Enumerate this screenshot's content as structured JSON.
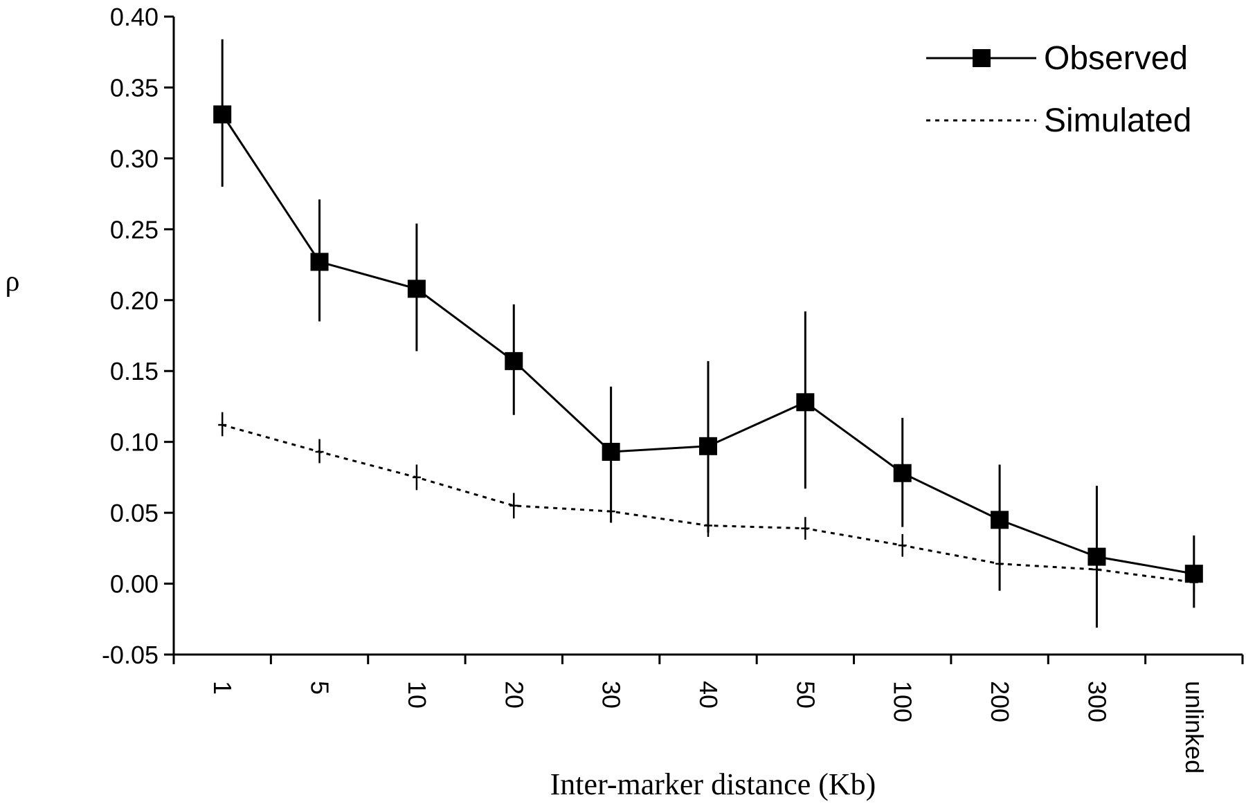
{
  "chart_data": {
    "type": "line",
    "xlabel": "Inter-marker distance (Kb)",
    "ylabel": "ρ",
    "ylim": [
      -0.05,
      0.4
    ],
    "y_ticks": [
      "0.40",
      "0.35",
      "0.30",
      "0.25",
      "0.20",
      "0.15",
      "0.10",
      "0.05",
      "0.00",
      "-0.05"
    ],
    "categories": [
      "1",
      "5",
      "10",
      "20",
      "30",
      "40",
      "50",
      "100",
      "200",
      "300",
      "unlinked"
    ],
    "legend_position": "top-right",
    "grid": false,
    "series": [
      {
        "name": "Observed",
        "style": "solid-square-markers",
        "values": [
          0.331,
          0.227,
          0.208,
          0.157,
          0.093,
          0.097,
          0.128,
          0.078,
          0.045,
          0.019,
          0.007
        ],
        "err_low": [
          0.28,
          0.185,
          0.164,
          0.119,
          0.043,
          0.036,
          0.067,
          0.04,
          -0.005,
          -0.031,
          -0.017
        ],
        "err_high": [
          0.384,
          0.271,
          0.254,
          0.197,
          0.139,
          0.157,
          0.192,
          0.117,
          0.084,
          0.069,
          0.034
        ]
      },
      {
        "name": "Simulated",
        "style": "dotted",
        "values": [
          0.112,
          0.093,
          0.075,
          0.055,
          0.051,
          0.041,
          0.039,
          0.027,
          0.014,
          0.01,
          0.001
        ],
        "err_low": [
          0.104,
          0.085,
          0.066,
          0.046,
          0.043,
          0.033,
          0.031,
          0.019,
          0.007,
          0.003,
          -0.006
        ],
        "err_high": [
          0.121,
          0.102,
          0.084,
          0.064,
          0.059,
          0.049,
          0.047,
          0.035,
          0.021,
          0.017,
          0.008
        ]
      }
    ],
    "colors": {
      "ink": "#000000",
      "background": "#ffffff"
    }
  }
}
